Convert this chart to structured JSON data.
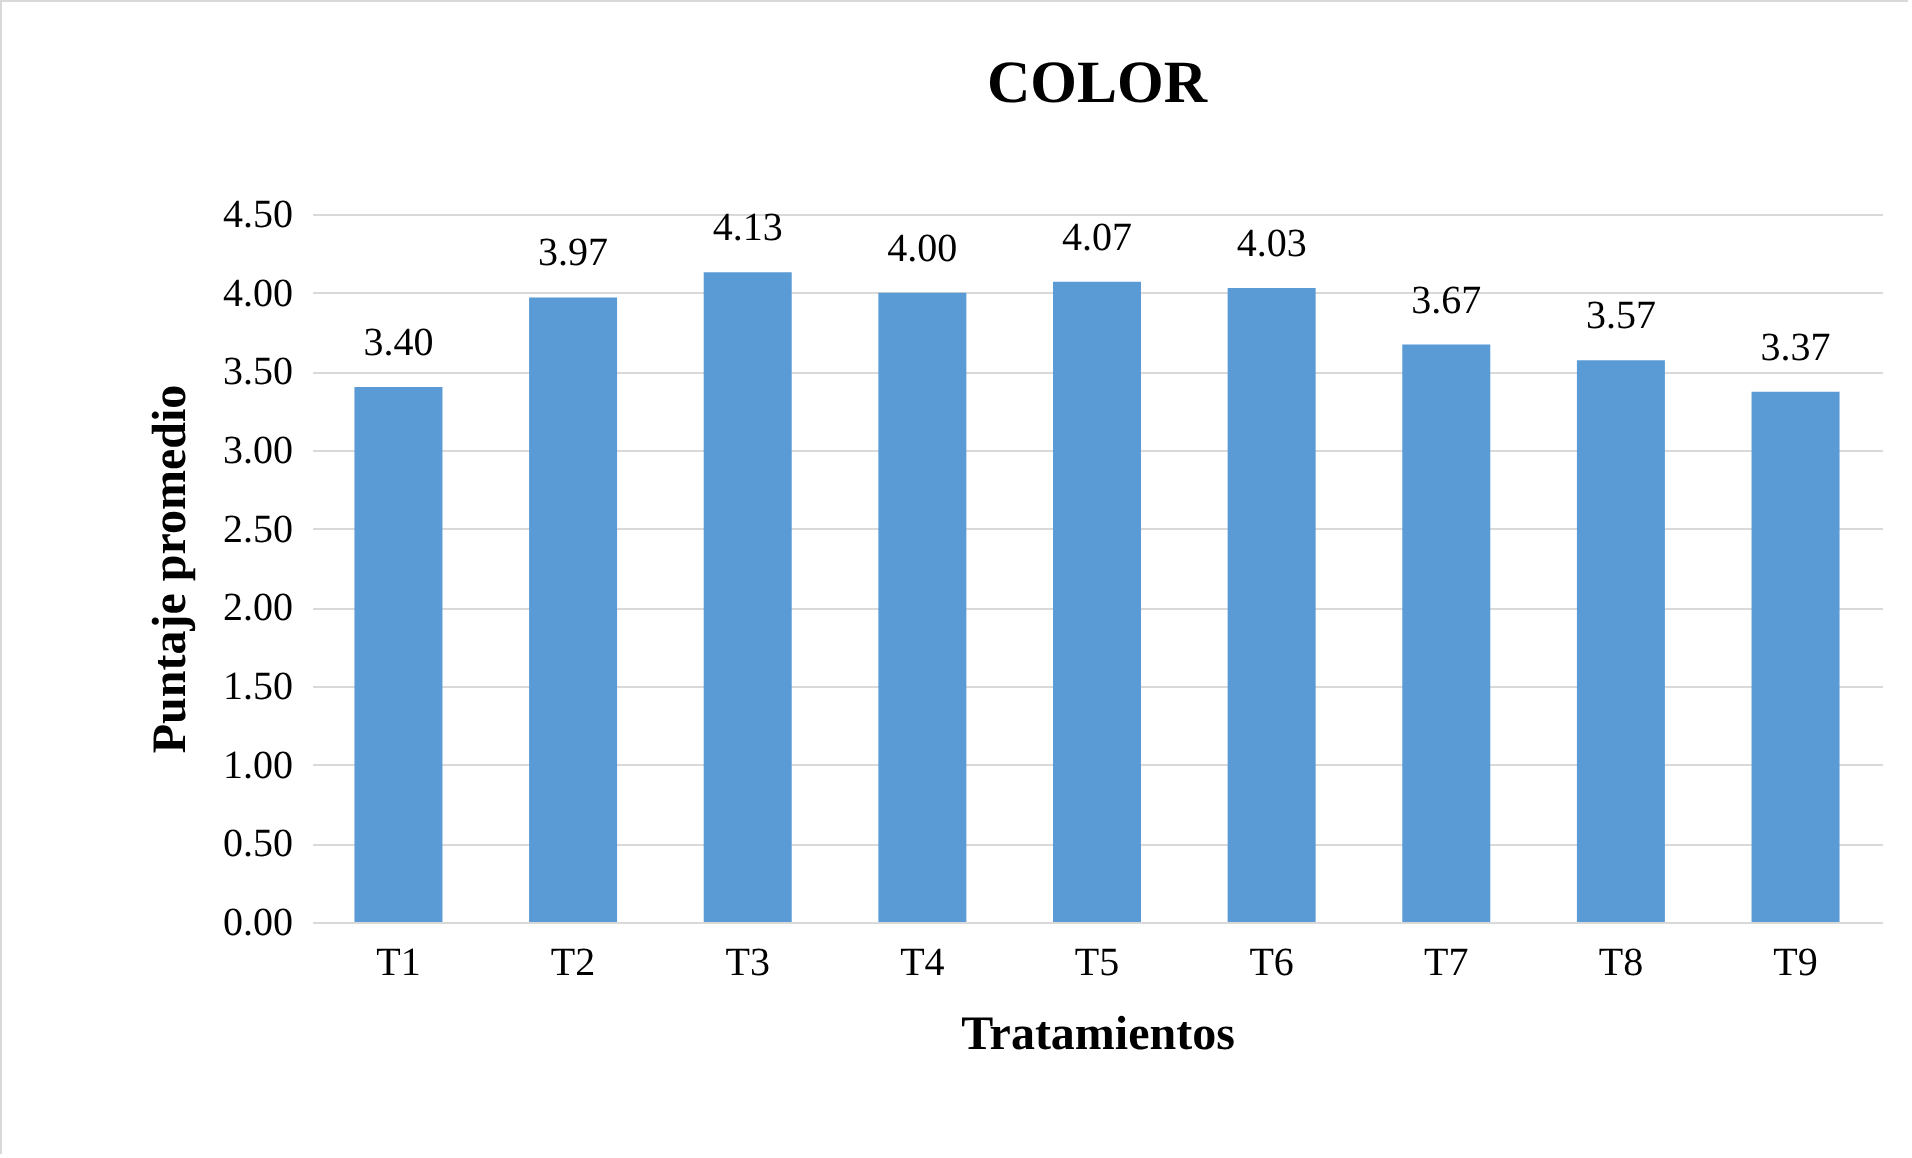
{
  "chart_data": {
    "type": "bar",
    "title": "COLOR",
    "xlabel": "Tratamientos",
    "ylabel": "Puntaje promedio",
    "categories": [
      "T1",
      "T2",
      "T3",
      "T4",
      "T5",
      "T6",
      "T7",
      "T8",
      "T9"
    ],
    "values": [
      3.4,
      3.97,
      4.13,
      4.0,
      4.07,
      4.03,
      3.67,
      3.57,
      3.37
    ],
    "value_labels": [
      "3.40",
      "3.97",
      "4.13",
      "4.00",
      "4.07",
      "4.03",
      "3.67",
      "3.57",
      "3.37"
    ],
    "color": "#5b9bd5",
    "ylim": [
      0,
      4.5
    ],
    "yticks": [
      {
        "value": 0,
        "label": "0.00"
      },
      {
        "value": 0.5,
        "label": "0.50"
      },
      {
        "value": 1,
        "label": "1.00"
      },
      {
        "value": 1.5,
        "label": "1.50"
      },
      {
        "value": 2,
        "label": "2.00"
      },
      {
        "value": 2.5,
        "label": "2.50"
      },
      {
        "value": 3,
        "label": "3.00"
      },
      {
        "value": 3.5,
        "label": "3.50"
      },
      {
        "value": 4,
        "label": "4.00"
      },
      {
        "value": 4.5,
        "label": "4.50"
      }
    ],
    "grid": "y"
  }
}
